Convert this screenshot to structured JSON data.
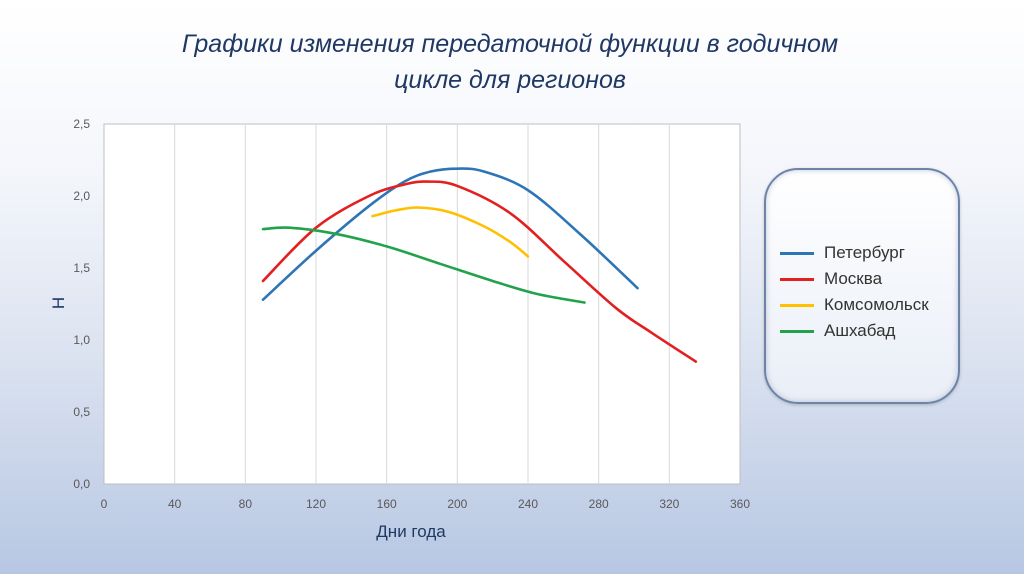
{
  "chart_data": {
    "type": "line",
    "title": "Графики изменения передаточной функции в годичном цикле для регионов",
    "xlabel": "Дни года",
    "ylabel": "Н",
    "xlim": [
      0,
      360
    ],
    "ylim": [
      0,
      2.5
    ],
    "x_ticks": [
      "0",
      "40",
      "80",
      "120",
      "160",
      "200",
      "240",
      "280",
      "320",
      "360"
    ],
    "y_ticks": [
      "0,0",
      "0,5",
      "1,0",
      "1,5",
      "2,0",
      "2,5"
    ],
    "grid": "vertical",
    "legend_position": "right",
    "series": [
      {
        "name": "Петербург",
        "color": "#2e75b6",
        "points": [
          [
            90,
            1.28
          ],
          [
            120,
            1.62
          ],
          [
            150,
            1.93
          ],
          [
            170,
            2.1
          ],
          [
            185,
            2.17
          ],
          [
            200,
            2.19
          ],
          [
            215,
            2.17
          ],
          [
            240,
            2.04
          ],
          [
            270,
            1.73
          ],
          [
            302,
            1.36
          ]
        ]
      },
      {
        "name": "Москва",
        "color": "#e41f1f",
        "points": [
          [
            90,
            1.41
          ],
          [
            120,
            1.78
          ],
          [
            150,
            2.0
          ],
          [
            170,
            2.08
          ],
          [
            183,
            2.1
          ],
          [
            200,
            2.07
          ],
          [
            230,
            1.88
          ],
          [
            260,
            1.55
          ],
          [
            290,
            1.22
          ],
          [
            310,
            1.05
          ],
          [
            335,
            0.85
          ]
        ]
      },
      {
        "name": "Комсомольск",
        "color": "#ffc000",
        "points": [
          [
            152,
            1.86
          ],
          [
            165,
            1.9
          ],
          [
            178,
            1.92
          ],
          [
            195,
            1.89
          ],
          [
            215,
            1.79
          ],
          [
            230,
            1.68
          ],
          [
            240,
            1.58
          ]
        ]
      },
      {
        "name": "Ашхабад",
        "color": "#22a24a",
        "points": [
          [
            90,
            1.77
          ],
          [
            105,
            1.78
          ],
          [
            130,
            1.74
          ],
          [
            160,
            1.65
          ],
          [
            190,
            1.53
          ],
          [
            220,
            1.41
          ],
          [
            245,
            1.32
          ],
          [
            272,
            1.26
          ]
        ]
      }
    ]
  }
}
